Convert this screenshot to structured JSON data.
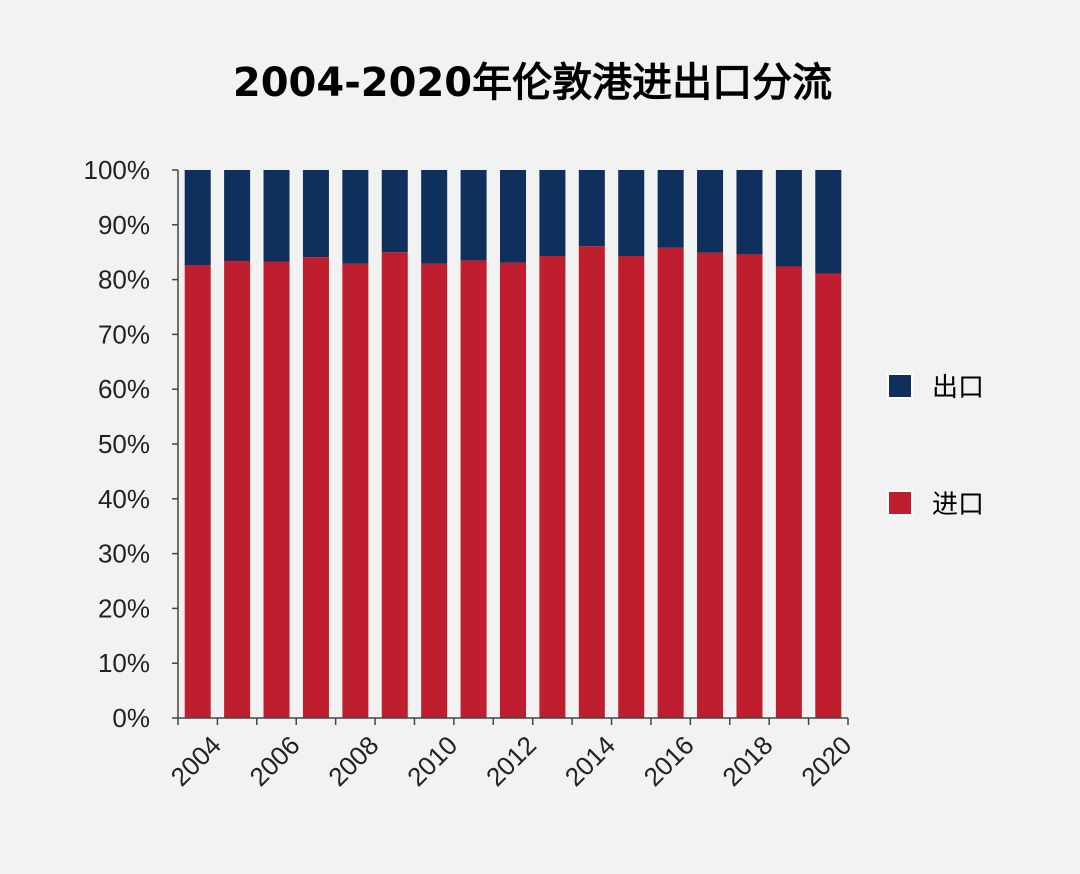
{
  "chart_data": {
    "type": "bar",
    "stacked": true,
    "title": "2004-2020年伦敦港进出口分流",
    "xlabel": "",
    "ylabel": "",
    "ylim": [
      0,
      100
    ],
    "y_ticks": [
      "0%",
      "10%",
      "20%",
      "30%",
      "40%",
      "50%",
      "60%",
      "70%",
      "80%",
      "90%",
      "100%"
    ],
    "categories": [
      "2004",
      "2005",
      "2006",
      "2007",
      "2008",
      "2009",
      "2010",
      "2011",
      "2012",
      "2013",
      "2014",
      "2015",
      "2016",
      "2017",
      "2018",
      "2019",
      "2020"
    ],
    "x_tick_labels": [
      "2004",
      "2006",
      "2008",
      "2010",
      "2012",
      "2014",
      "2016",
      "2018",
      "2020"
    ],
    "series": [
      {
        "name": "进口",
        "color": "#be1e2d",
        "values": [
          82.6,
          83.4,
          83.3,
          84.1,
          82.9,
          85.0,
          82.9,
          83.5,
          83.1,
          84.3,
          86.1,
          84.3,
          85.8,
          84.9,
          84.6,
          82.4,
          81.1
        ]
      },
      {
        "name": "出口",
        "color": "#0f2f5c",
        "values": [
          17.4,
          16.6,
          16.7,
          15.9,
          17.1,
          15.0,
          17.1,
          16.5,
          16.9,
          15.7,
          13.9,
          15.7,
          14.2,
          15.1,
          15.4,
          17.6,
          18.9
        ]
      }
    ],
    "legend": {
      "placement": "right",
      "order": [
        "出口",
        "进口"
      ]
    },
    "grid": false
  }
}
